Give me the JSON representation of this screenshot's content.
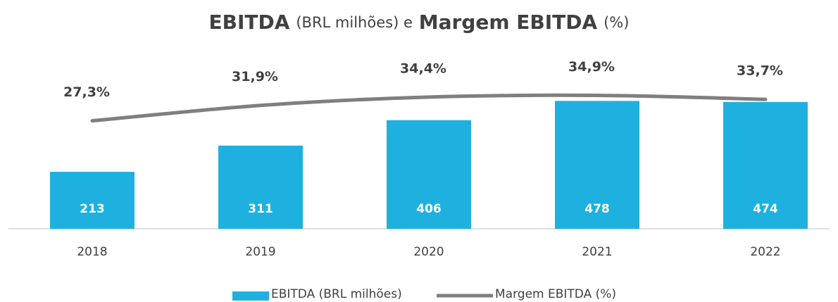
{
  "chart_data": {
    "type": "bar_line",
    "title": [
      "EBITDA",
      "(BRL milhões) e",
      "Margem EBITDA",
      "(%)"
    ],
    "categories": [
      "2018",
      "2019",
      "2020",
      "2021",
      "2022"
    ],
    "ylim": [
      0,
      750
    ],
    "y2lim": [
      -5,
      55
    ],
    "series": [
      {
        "name": "EBITDA (BRL milhões)",
        "type": "bar",
        "color": "#1eb1e0",
        "values": [
          213,
          311,
          406,
          478,
          474
        ]
      },
      {
        "name": "Margem EBITDA (%)",
        "type": "line",
        "axis": "y2",
        "color": "#7f7f7f",
        "values": [
          27.3,
          31.9,
          34.4,
          34.9,
          33.7
        ],
        "value_labels": [
          "27,3%",
          "31,9%",
          "34,4%",
          "34,9%",
          "33,7%"
        ]
      }
    ]
  }
}
